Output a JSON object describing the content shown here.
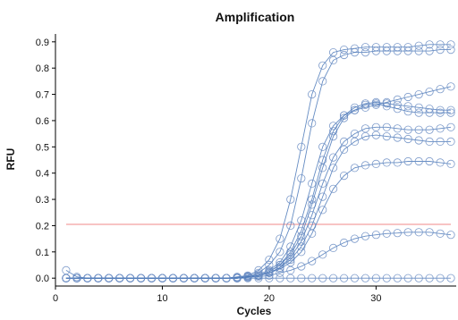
{
  "chart_data": {
    "type": "line",
    "title": "Amplification",
    "xlabel": "Cycles",
    "ylabel": "RFU",
    "xlim": [
      0,
      37.5
    ],
    "ylim": [
      -0.03,
      0.93
    ],
    "xticks": [
      0,
      10,
      20,
      30
    ],
    "yticks": [
      0.0,
      0.1,
      0.2,
      0.3,
      0.4,
      0.5,
      0.6,
      0.7,
      0.8,
      0.9
    ],
    "xtick_labels": [
      "0",
      "10",
      "20",
      "30"
    ],
    "ytick_labels": [
      "0.0",
      "0.1",
      "0.2",
      "0.3",
      "0.4",
      "0.5",
      "0.6",
      "0.7",
      "0.8",
      "0.9"
    ],
    "grid": false,
    "marker": "circle",
    "threshold": {
      "y": 0.205,
      "x_start": 1,
      "x_end": 37,
      "color": "#f28a8a"
    },
    "colors": {
      "series": "#4a78b8",
      "marker": "#6e8fc4",
      "axis": "#000000"
    },
    "x": [
      1,
      2,
      3,
      4,
      5,
      6,
      7,
      8,
      9,
      10,
      11,
      12,
      13,
      14,
      15,
      16,
      17,
      18,
      19,
      20,
      21,
      22,
      23,
      24,
      25,
      26,
      27,
      28,
      29,
      30,
      31,
      32,
      33,
      34,
      35,
      36,
      37
    ],
    "series": [
      {
        "values": [
          0.0,
          0.0,
          0.0,
          0.0,
          0.0,
          0.0,
          0.0,
          0.0,
          0.0,
          0.0,
          0.0,
          0.0,
          0.0,
          0.0,
          0.0,
          0.0,
          0.005,
          0.01,
          0.03,
          0.07,
          0.15,
          0.3,
          0.5,
          0.7,
          0.81,
          0.86,
          0.87,
          0.875,
          0.88,
          0.88,
          0.88,
          0.88,
          0.88,
          0.885,
          0.89,
          0.89,
          0.89
        ]
      },
      {
        "values": [
          0.0,
          0.0,
          0.0,
          0.0,
          0.0,
          0.0,
          0.0,
          0.0,
          0.0,
          0.0,
          0.0,
          0.0,
          0.0,
          0.0,
          0.0,
          0.0,
          0.003,
          0.008,
          0.02,
          0.05,
          0.1,
          0.2,
          0.38,
          0.59,
          0.75,
          0.83,
          0.85,
          0.86,
          0.86,
          0.865,
          0.865,
          0.865,
          0.865,
          0.865,
          0.865,
          0.87,
          0.87
        ]
      },
      {
        "values": [
          0.0,
          0.0,
          0.0,
          0.0,
          0.0,
          0.0,
          0.0,
          0.0,
          0.0,
          0.0,
          0.0,
          0.0,
          0.0,
          0.0,
          0.0,
          0.0,
          0.0,
          0.005,
          0.015,
          0.03,
          0.06,
          0.12,
          0.22,
          0.36,
          0.5,
          0.58,
          0.62,
          0.64,
          0.65,
          0.66,
          0.67,
          0.68,
          0.69,
          0.7,
          0.71,
          0.72,
          0.73
        ]
      },
      {
        "values": [
          0.0,
          0.0,
          0.0,
          0.0,
          0.0,
          0.0,
          0.0,
          0.0,
          0.0,
          0.0,
          0.0,
          0.0,
          0.0,
          0.0,
          0.0,
          0.0,
          0.0,
          0.005,
          0.01,
          0.025,
          0.05,
          0.1,
          0.18,
          0.3,
          0.45,
          0.56,
          0.62,
          0.65,
          0.665,
          0.67,
          0.665,
          0.66,
          0.655,
          0.65,
          0.645,
          0.64,
          0.64
        ]
      },
      {
        "values": [
          0.0,
          0.0,
          0.0,
          0.0,
          0.0,
          0.0,
          0.0,
          0.0,
          0.0,
          0.0,
          0.0,
          0.0,
          0.0,
          0.0,
          0.0,
          0.0,
          0.0,
          0.005,
          0.01,
          0.025,
          0.05,
          0.09,
          0.16,
          0.28,
          0.42,
          0.54,
          0.61,
          0.64,
          0.66,
          0.665,
          0.655,
          0.645,
          0.635,
          0.63,
          0.63,
          0.63,
          0.63
        ]
      },
      {
        "values": [
          0.0,
          0.0,
          0.0,
          0.0,
          0.0,
          0.0,
          0.0,
          0.0,
          0.0,
          0.0,
          0.0,
          0.0,
          0.0,
          0.0,
          0.0,
          0.0,
          0.0,
          0.005,
          0.01,
          0.02,
          0.04,
          0.08,
          0.14,
          0.24,
          0.36,
          0.46,
          0.52,
          0.55,
          0.57,
          0.575,
          0.575,
          0.57,
          0.565,
          0.565,
          0.565,
          0.57,
          0.575
        ]
      },
      {
        "values": [
          0.0,
          0.0,
          0.0,
          0.0,
          0.0,
          0.0,
          0.0,
          0.0,
          0.0,
          0.0,
          0.0,
          0.0,
          0.0,
          0.0,
          0.0,
          0.0,
          0.0,
          0.005,
          0.01,
          0.02,
          0.04,
          0.07,
          0.12,
          0.2,
          0.31,
          0.42,
          0.49,
          0.52,
          0.54,
          0.545,
          0.54,
          0.535,
          0.53,
          0.525,
          0.52,
          0.52,
          0.52
        ]
      },
      {
        "values": [
          0.0,
          0.0,
          0.0,
          0.0,
          0.0,
          0.0,
          0.0,
          0.0,
          0.0,
          0.0,
          0.0,
          0.0,
          0.0,
          0.0,
          0.0,
          0.0,
          0.0,
          0.004,
          0.01,
          0.02,
          0.035,
          0.06,
          0.1,
          0.17,
          0.26,
          0.34,
          0.39,
          0.42,
          0.43,
          0.435,
          0.44,
          0.44,
          0.445,
          0.445,
          0.445,
          0.44,
          0.435
        ]
      },
      {
        "values": [
          0.0,
          0.0,
          0.0,
          0.0,
          0.0,
          0.0,
          0.0,
          0.0,
          0.0,
          0.0,
          0.0,
          0.0,
          0.0,
          0.0,
          0.0,
          0.0,
          0.0,
          0.003,
          0.006,
          0.01,
          0.02,
          0.03,
          0.045,
          0.065,
          0.09,
          0.115,
          0.135,
          0.15,
          0.16,
          0.165,
          0.17,
          0.172,
          0.175,
          0.175,
          0.175,
          0.17,
          0.165
        ]
      },
      {
        "values": [
          0.03,
          0.005,
          0.0,
          0.0,
          0.0,
          0.0,
          0.0,
          0.0,
          0.0,
          0.0,
          0.0,
          0.0,
          0.0,
          0.0,
          0.0,
          0.0,
          0.0,
          0.0,
          0.0,
          0.0,
          0.0,
          0.0,
          0.0,
          0.0,
          0.0,
          0.0,
          0.0,
          0.0,
          0.0,
          0.0,
          0.0,
          0.0,
          0.0,
          0.0,
          0.0,
          0.0,
          0.0
        ]
      }
    ]
  }
}
